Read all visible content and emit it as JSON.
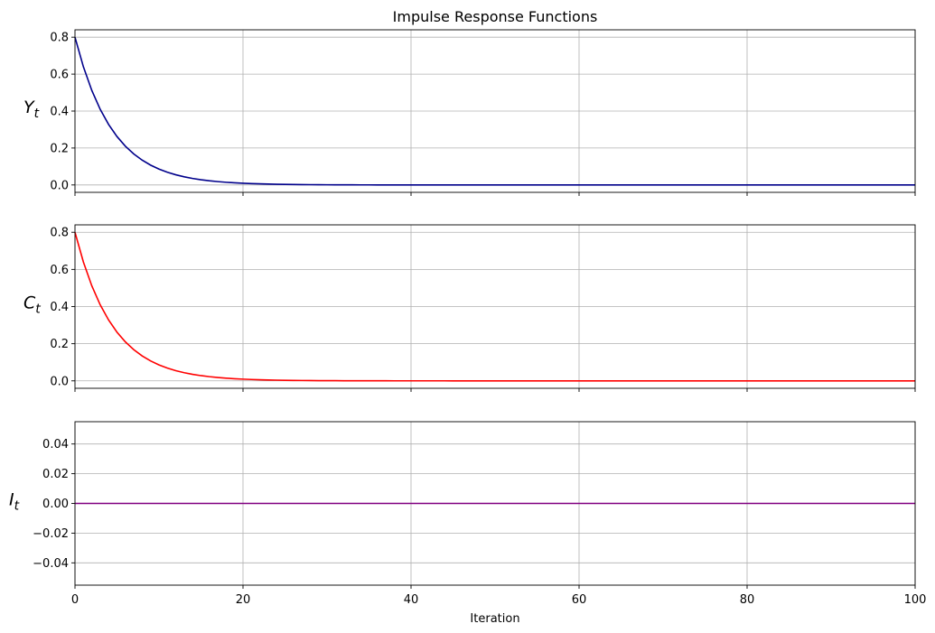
{
  "chart_data": [
    {
      "type": "line",
      "title": "Impulse Response Functions",
      "ylabel": {
        "base": "Y",
        "sub": "t"
      },
      "xlabel": "",
      "xlim": [
        0,
        100
      ],
      "ylim": [
        -0.04,
        0.84
      ],
      "xticks": [
        0,
        20,
        40,
        60,
        80,
        100
      ],
      "yticks": [
        0.0,
        0.2,
        0.4,
        0.6,
        0.8
      ],
      "ytick_labels": [
        "0.0",
        "0.2",
        "0.4",
        "0.6",
        "0.8"
      ],
      "show_xtick_labels": false,
      "grid": true,
      "series": [
        {
          "color": "#00008b",
          "start": 0.8,
          "decay": 0.8,
          "n": 101
        }
      ]
    },
    {
      "type": "line",
      "title": "",
      "ylabel": {
        "base": "C",
        "sub": "t"
      },
      "xlabel": "",
      "xlim": [
        0,
        100
      ],
      "ylim": [
        -0.04,
        0.84
      ],
      "xticks": [
        0,
        20,
        40,
        60,
        80,
        100
      ],
      "yticks": [
        0.0,
        0.2,
        0.4,
        0.6,
        0.8
      ],
      "ytick_labels": [
        "0.0",
        "0.2",
        "0.4",
        "0.6",
        "0.8"
      ],
      "show_xtick_labels": false,
      "grid": true,
      "series": [
        {
          "color": "#ff0000",
          "start": 0.8,
          "decay": 0.8,
          "n": 101
        }
      ]
    },
    {
      "type": "line",
      "title": "",
      "ylabel": {
        "base": "I",
        "sub": "t"
      },
      "xlabel": "Iteration",
      "xlim": [
        0,
        100
      ],
      "ylim": [
        -0.055,
        0.055
      ],
      "xticks": [
        0,
        20,
        40,
        60,
        80,
        100
      ],
      "xtick_labels": [
        "0",
        "20",
        "40",
        "60",
        "80",
        "100"
      ],
      "yticks": [
        -0.04,
        -0.02,
        0.0,
        0.02,
        0.04
      ],
      "ytick_labels": [
        "−0.04",
        "−0.02",
        "0.00",
        "0.02",
        "0.04"
      ],
      "show_xtick_labels": true,
      "grid": true,
      "series": [
        {
          "color": "#800080",
          "start": 0.0,
          "decay": 0.8,
          "n": 101
        }
      ]
    }
  ]
}
